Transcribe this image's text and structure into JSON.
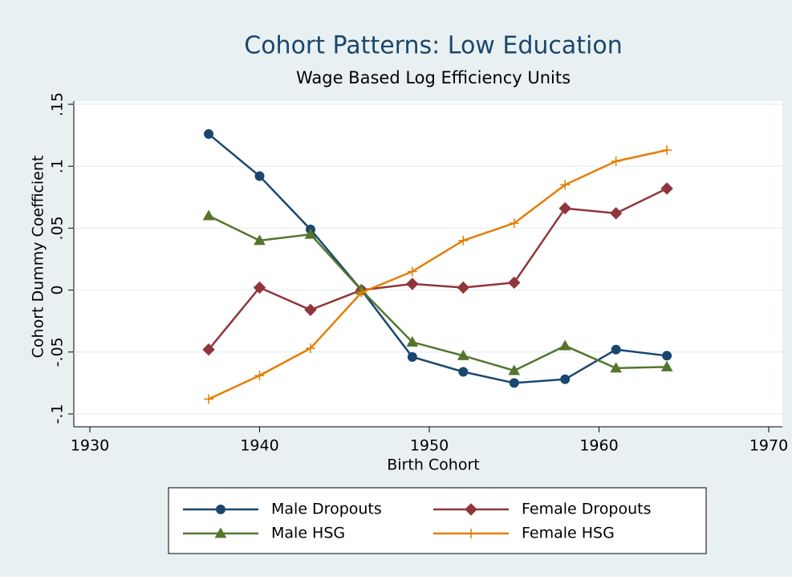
{
  "chart_data": {
    "type": "line",
    "title": "Cohort Patterns: Low Education",
    "subtitle": "Wage Based Log Efficiency Units",
    "x_label": "Birth Cohort",
    "y_label": "Cohort Dummy Coefficient",
    "x": [
      1937,
      1940,
      1943,
      1946,
      1949,
      1952,
      1955,
      1958,
      1961,
      1964
    ],
    "series": [
      {
        "name": "Male Dropouts",
        "color": "#1a476f",
        "marker": "circle",
        "values": [
          0.126,
          0.092,
          0.049,
          0,
          -0.054,
          -0.066,
          -0.075,
          -0.072,
          -0.048,
          -0.053
        ]
      },
      {
        "name": "Female Dropouts",
        "color": "#90353b",
        "marker": "diamond",
        "values": [
          -0.048,
          0.002,
          -0.016,
          0,
          0.005,
          0.002,
          0.006,
          0.066,
          0.062,
          0.082
        ]
      },
      {
        "name": "Male HSG",
        "color": "#55752f",
        "marker": "triangle",
        "values": [
          0.06,
          0.04,
          0.045,
          0,
          -0.042,
          -0.053,
          -0.065,
          -0.045,
          -0.063,
          -0.062
        ]
      },
      {
        "name": "Female HSG",
        "color": "#e37e00",
        "marker": "plus",
        "values": [
          -0.088,
          -0.069,
          -0.047,
          -0.002,
          0.015,
          0.04,
          0.054,
          0.085,
          0.104,
          0.113
        ]
      }
    ],
    "xlim": [
      1930,
      1970
    ],
    "xticks": [
      1930,
      1940,
      1950,
      1960,
      1970
    ],
    "ylim": [
      -0.1,
      0.15
    ],
    "yticks": [
      {
        "value": -0.1,
        "label": "-.1"
      },
      {
        "value": -0.05,
        "label": "-.05"
      },
      0,
      {
        "value": 0.05,
        "label": ".05"
      },
      {
        "value": 0.1,
        "label": ".1"
      },
      {
        "value": 0.15,
        "label": ".15"
      }
    ],
    "grid": true
  }
}
